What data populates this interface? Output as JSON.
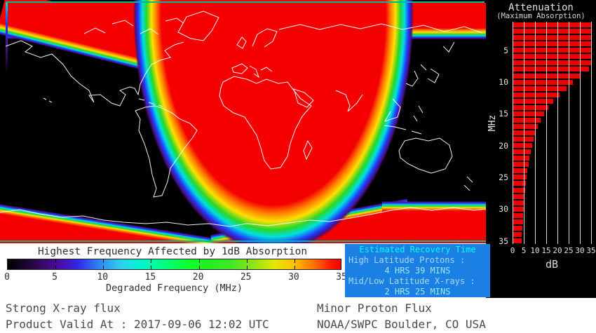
{
  "sidebar": {
    "title": "Attenuation",
    "subtitle": "(Maximum Absorption)",
    "ylabel": "MHz",
    "xlabel": "dB",
    "yticks": [
      5,
      10,
      15,
      20,
      25,
      30,
      35
    ],
    "xticks": [
      0,
      5,
      10,
      15,
      20,
      25,
      30,
      35
    ]
  },
  "chart_data": {
    "type": "bar",
    "orientation": "horizontal",
    "title": "Attenuation (Maximum Absorption)",
    "xlabel": "dB",
    "ylabel": "MHz",
    "xlim": [
      0,
      35
    ],
    "ylim": [
      1,
      35
    ],
    "grid": "vertical-white-lines",
    "categories_mhz": [
      1,
      2,
      3,
      4,
      5,
      6,
      7,
      8,
      9,
      10,
      11,
      12,
      13,
      14,
      15,
      16,
      17,
      18,
      19,
      20,
      21,
      22,
      23,
      24,
      25,
      26,
      27,
      28,
      29,
      30,
      31,
      32,
      33,
      34,
      35
    ],
    "values_db": [
      35,
      35,
      35,
      35,
      35,
      35,
      35,
      34,
      30,
      27,
      24,
      21,
      18,
      16,
      14,
      12.5,
      11.2,
      10.2,
      9.4,
      8.7,
      8.1,
      7.6,
      7.1,
      6.7,
      6.3,
      6.0,
      5.7,
      5.4,
      5.2,
      5.0,
      4.8,
      4.6,
      4.4,
      4.2,
      4.0
    ]
  },
  "colorbar": {
    "title": "Highest Frequency Affected by 1dB Absorption",
    "ticks": [
      0,
      5,
      10,
      15,
      20,
      25,
      30,
      35
    ],
    "label": "Degraded Frequency (MHz)",
    "range_mhz": [
      0,
      35
    ]
  },
  "recovery": {
    "title": "Estimated Recovery Time",
    "high_lat_label": "High Latitude Protons :",
    "high_lat_value": "4 HRS 39 MINS",
    "midlow_label": "Mid/Low Latitude X-rays :",
    "midlow_value": "2 HRS 25 MINS"
  },
  "footer": {
    "xray_status": "Strong X-ray flux",
    "valid_at": "Product Valid At : 2017-09-06 12:02 UTC",
    "proton_status": "Minor Proton Flux",
    "agency": "NOAA/SWPC Boulder, CO USA"
  },
  "colors": {
    "absorption_red": "#f40000",
    "map_background": "#000000",
    "coastline": "#ffffff",
    "recovery_box_bg": "#1b80e4",
    "recovery_title": "#00ffff",
    "recovery_text": "#a9d9ea",
    "recovery_value": "#9fe6f2",
    "bar_red": "#ee0000",
    "frame_teal": "#00b894"
  }
}
